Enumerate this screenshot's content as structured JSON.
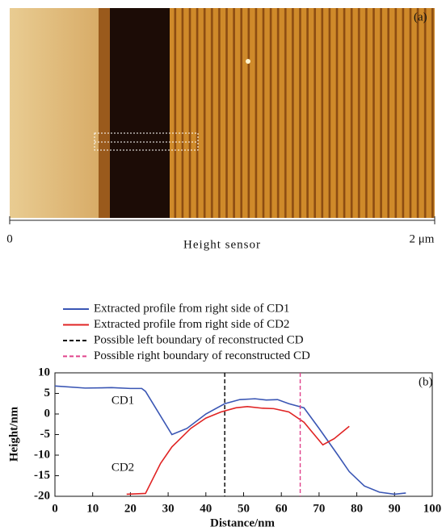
{
  "image": {
    "label": "(a)",
    "scale_start": "0",
    "scale_end": "2 μm",
    "caption": "Height sensor"
  },
  "chart_data": {
    "type": "line",
    "label": "(b)",
    "x_label": "Distance/nm",
    "y_label": "Height/nm",
    "xlim": [
      0,
      100
    ],
    "xticks": [
      0,
      10,
      20,
      30,
      40,
      50,
      60,
      70,
      80,
      90,
      100
    ],
    "ylim": [
      -20,
      10
    ],
    "yticks": [
      -20,
      -15,
      -10,
      -5,
      0,
      5,
      10
    ],
    "series": [
      {
        "name": "Extracted profile from right side of CD1",
        "color": "#3a56b4",
        "x": [
          0,
          8,
          15,
          20,
          23,
          24,
          31,
          35,
          40,
          45,
          49,
          53,
          56,
          59,
          62,
          66,
          70,
          75,
          78,
          82,
          86,
          90,
          93
        ],
        "values": [
          6.8,
          6.3,
          6.4,
          6.2,
          6.2,
          5.5,
          -5,
          -3.5,
          0,
          2.5,
          3.5,
          3.7,
          3.4,
          3.5,
          2.5,
          1.5,
          -3.5,
          -10,
          -14,
          -17.5,
          -19,
          -19.5,
          -19.2
        ]
      },
      {
        "name": "Extracted profile from right side of CD2",
        "color": "#e02424",
        "x": [
          19,
          24,
          28,
          31,
          36,
          40,
          44,
          48,
          51,
          55,
          58,
          62,
          66,
          71,
          74,
          78
        ],
        "values": [
          -19.5,
          -19.3,
          -12,
          -8,
          -3.5,
          -1,
          0.5,
          1.5,
          1.8,
          1.4,
          1.3,
          0.5,
          -2,
          -7.5,
          -6,
          -3
        ]
      }
    ],
    "vlines": [
      {
        "name": "Possible left boundary of reconstructed CD",
        "color": "#000000",
        "x": 45
      },
      {
        "name": "Possible right boundary of reconstructed CD",
        "color": "#e0408a",
        "x": 65
      }
    ],
    "annotations": [
      "CD1",
      "CD2"
    ]
  }
}
